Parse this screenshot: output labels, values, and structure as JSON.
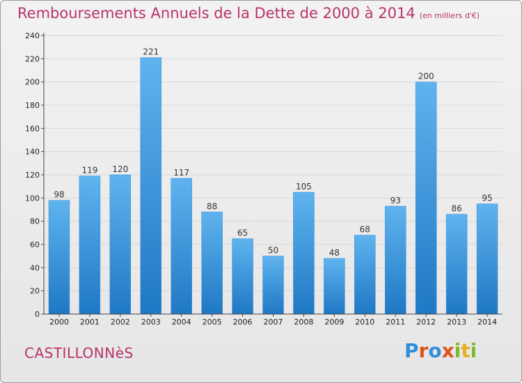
{
  "header": {
    "title": "Remboursements Annuels de la Dette de 2000 à 2014",
    "subtitle": "(en milliers d'€)"
  },
  "footer": {
    "place": "CASTILLONNèS",
    "logo_text": "Proxiti"
  },
  "colors": {
    "title": "#b8336a",
    "bar_light": "#5fb3ee",
    "bar_dark": "#1f78c4",
    "grid": "#d8d8d8"
  },
  "chart_data": {
    "type": "bar",
    "title": "Remboursements Annuels de la Dette de 2000 à 2014",
    "subtitle": "(en milliers d'€)",
    "categories": [
      "2000",
      "2001",
      "2002",
      "2003",
      "2004",
      "2005",
      "2006",
      "2007",
      "2008",
      "2009",
      "2010",
      "2011",
      "2012",
      "2013",
      "2014"
    ],
    "values": [
      98,
      119,
      120,
      221,
      117,
      88,
      65,
      50,
      105,
      48,
      68,
      93,
      200,
      86,
      95
    ],
    "ylim": [
      0,
      240
    ],
    "yticks": [
      0,
      20,
      40,
      60,
      80,
      100,
      120,
      140,
      160,
      180,
      200,
      220,
      240
    ],
    "grid": true,
    "data_labels": true
  }
}
